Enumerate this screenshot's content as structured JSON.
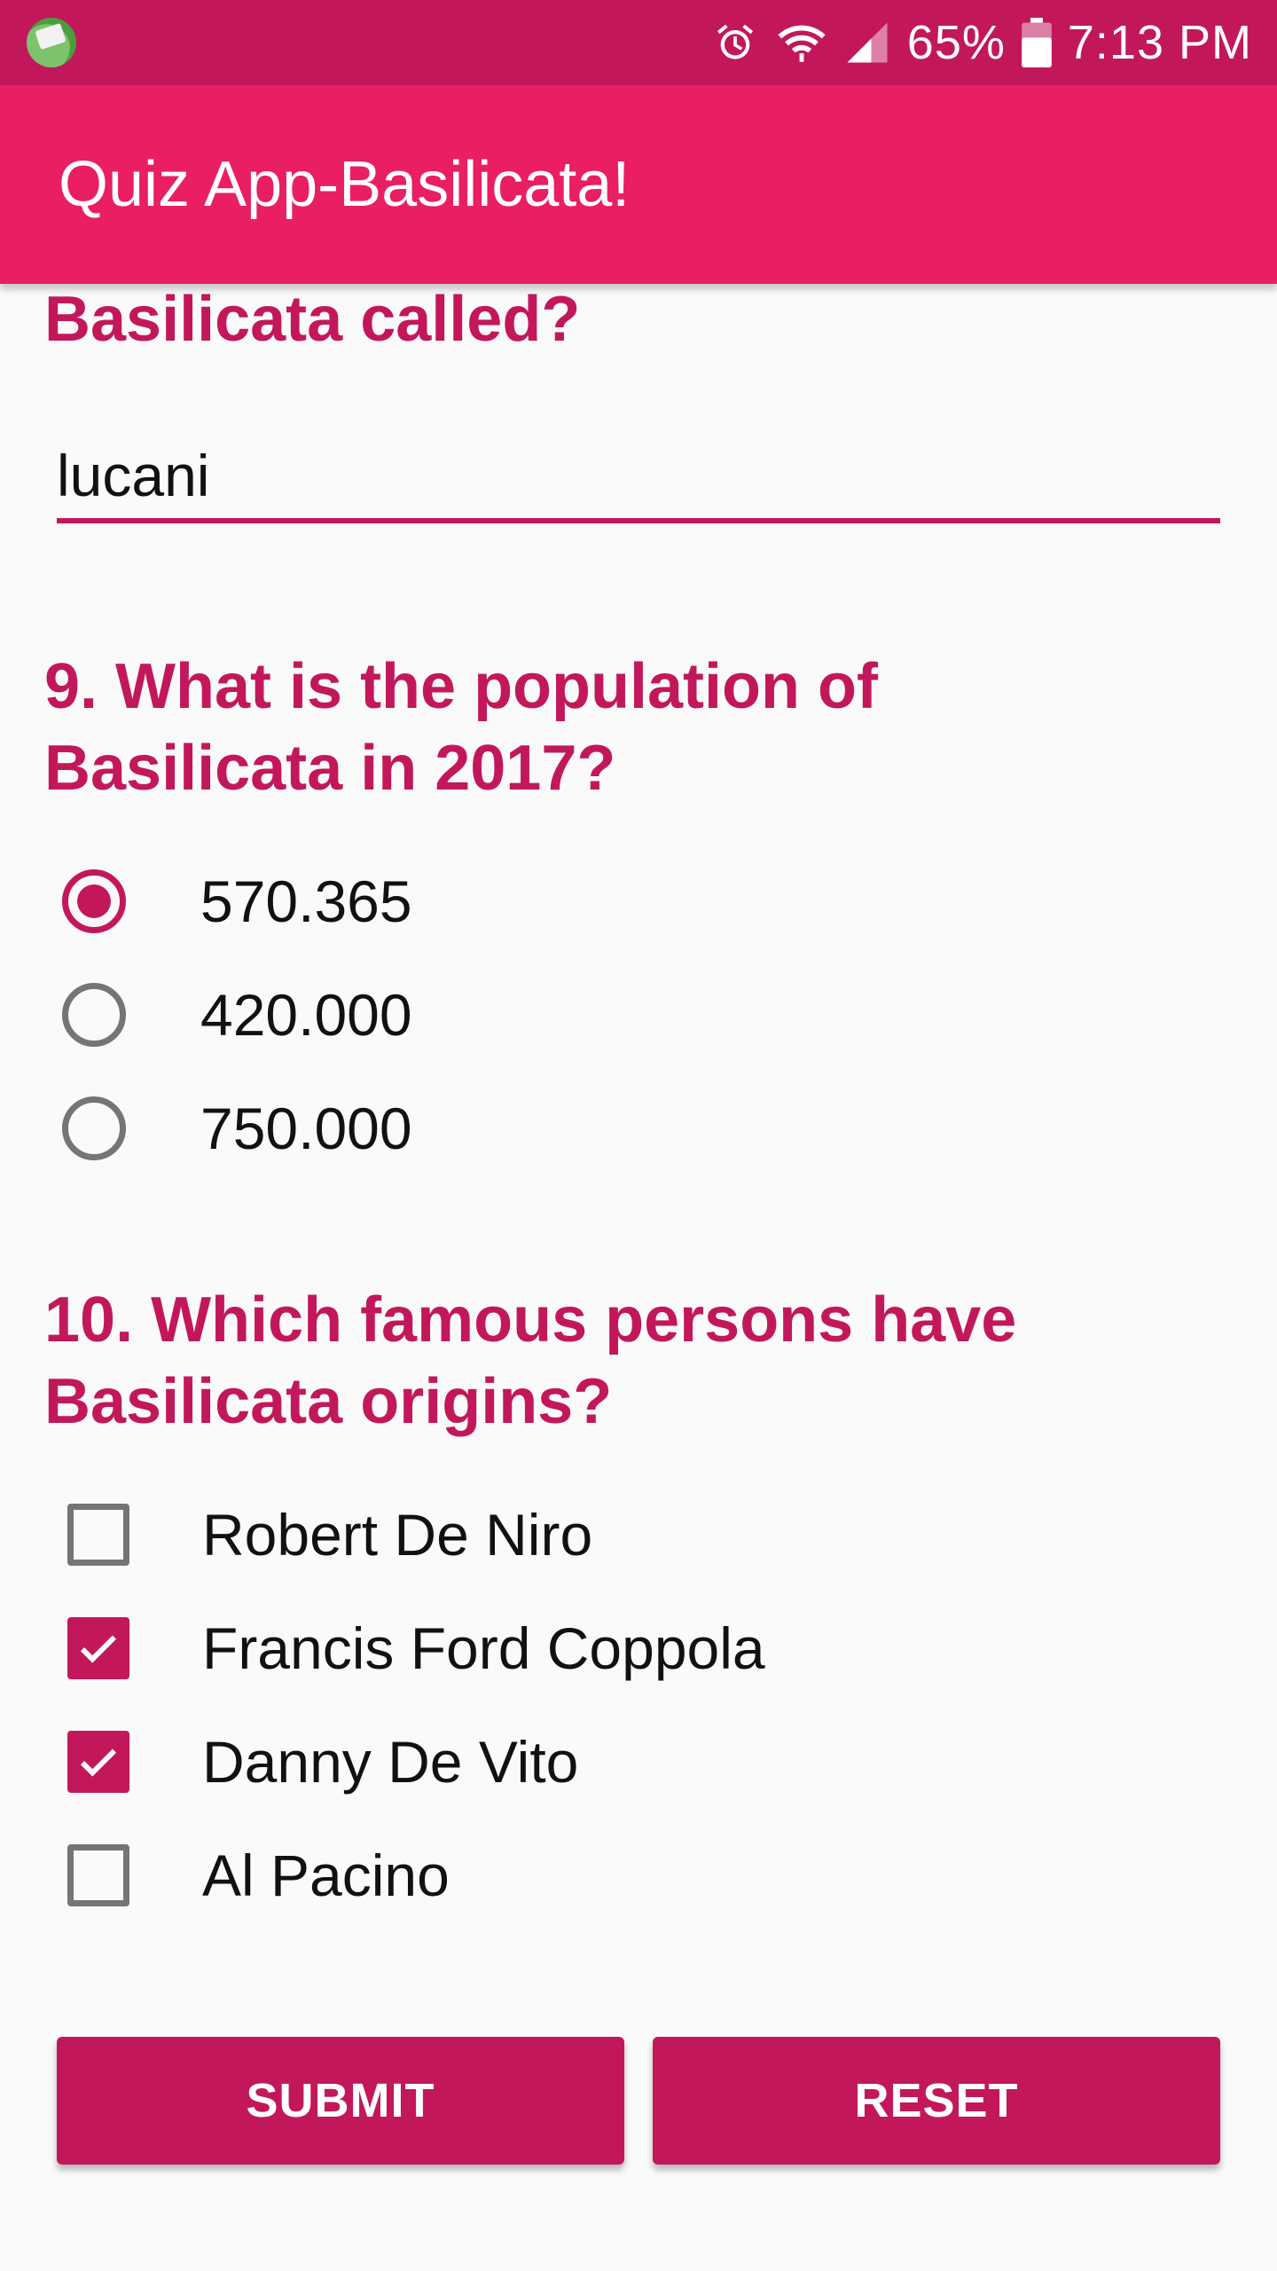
{
  "status_bar": {
    "battery": "65%",
    "time": "7:13 PM",
    "icons": [
      "app-notification-icon",
      "alarm-icon",
      "wifi-icon",
      "signal-icon",
      "battery-icon"
    ]
  },
  "app_bar": {
    "title": "Quiz App-Basilicata!"
  },
  "q8": {
    "text_tail": "Basilicata called?",
    "answer_value": "lucani"
  },
  "q9": {
    "text": "9. What is the population of Basilicata in 2017?",
    "options": [
      {
        "label": "570.365",
        "checked": true
      },
      {
        "label": "420.000",
        "checked": false
      },
      {
        "label": "750.000",
        "checked": false
      }
    ]
  },
  "q10": {
    "text": "10. Which famous persons have Basilicata origins?",
    "options": [
      {
        "label": "Robert De Niro",
        "checked": false
      },
      {
        "label": "Francis Ford Coppola",
        "checked": true
      },
      {
        "label": "Danny De Vito",
        "checked": true
      },
      {
        "label": "Al Pacino",
        "checked": false
      }
    ]
  },
  "buttons": {
    "submit": "SUBMIT",
    "reset": "RESET"
  },
  "colors": {
    "primary": "#e91e63",
    "primary_dark": "#c2185b",
    "background": "#fafafa"
  }
}
